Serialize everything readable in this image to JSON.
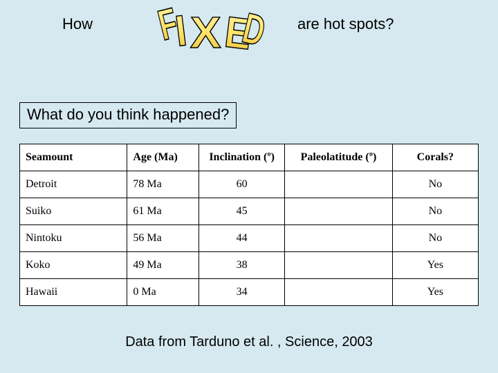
{
  "title": {
    "left": "How",
    "right": "are hot spots?",
    "fixed_word": "FIXED",
    "fixed_fill": "#ffe36a",
    "fixed_stroke": "#000000"
  },
  "question": "What do you think happened?",
  "table": {
    "columns": [
      {
        "key": "seamount",
        "label": "Seamount",
        "align": "left"
      },
      {
        "key": "age",
        "label": "Age (Ma)",
        "align": "left"
      },
      {
        "key": "inclination",
        "label": "Inclination (º)",
        "align": "center"
      },
      {
        "key": "paleolat",
        "label": "Paleolatitude (º)",
        "align": "center"
      },
      {
        "key": "corals",
        "label": "Corals?",
        "align": "center"
      }
    ],
    "rows": [
      {
        "seamount": "Detroit",
        "age": "78 Ma",
        "inclination": "60",
        "paleolat": "",
        "corals": "No"
      },
      {
        "seamount": "Suiko",
        "age": "61 Ma",
        "inclination": "45",
        "paleolat": "",
        "corals": "No"
      },
      {
        "seamount": "Nintoku",
        "age": "56 Ma",
        "inclination": "44",
        "paleolat": "",
        "corals": "No"
      },
      {
        "seamount": "Koko",
        "age": "49 Ma",
        "inclination": "38",
        "paleolat": "",
        "corals": "Yes"
      },
      {
        "seamount": "Hawaii",
        "age": "0 Ma",
        "inclination": "34",
        "paleolat": "",
        "corals": "Yes"
      }
    ],
    "header_fontsize": 16,
    "cell_fontsize": 16,
    "border_color": "#000000",
    "background_color": "#ffffff"
  },
  "citation": "Data from Tarduno et al. , Science, 2003",
  "background_color": "#d6e9f0"
}
